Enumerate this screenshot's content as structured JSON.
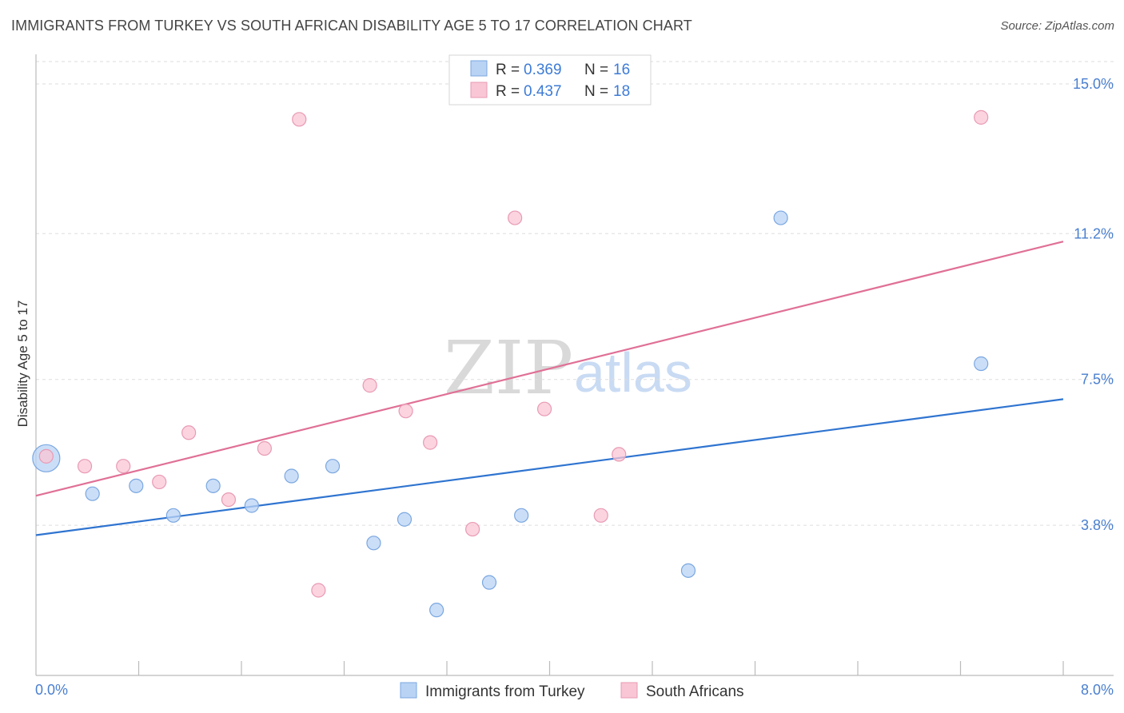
{
  "title": "IMMIGRANTS FROM TURKEY VS SOUTH AFRICAN DISABILITY AGE 5 TO 17 CORRELATION CHART",
  "source": "Source: ZipAtlas.com",
  "watermark": {
    "zip": "ZIP",
    "atlas": "atlas"
  },
  "legend": {
    "rows": [
      {
        "r_label": "R =",
        "r_value": "0.369",
        "n_label": "N =",
        "n_value": "16"
      },
      {
        "r_label": "R =",
        "r_value": "0.437",
        "n_label": "N =",
        "n_value": "18"
      }
    ]
  },
  "colors": {
    "blue_fill": "#b9d3f5",
    "blue_stroke": "#7aa7e0",
    "blue_line": "#2f74d0",
    "pink_fill": "#f9c6d5",
    "pink_stroke": "#e99ab3",
    "pink_line": "#e07096",
    "tick_text": "#4a7fcf",
    "grid": "#dddddd"
  },
  "chart_data": {
    "type": "scatter",
    "title": "IMMIGRANTS FROM TURKEY VS SOUTH AFRICAN DISABILITY AGE 5 TO 17 CORRELATION CHART",
    "xlabel": "",
    "ylabel": "Disability Age 5 to 17",
    "xlim": [
      0.0,
      8.0
    ],
    "ylim": [
      0.0,
      15.5
    ],
    "x_tick_labels": [
      "0.0%",
      "8.0%"
    ],
    "y_ticks": [
      3.8,
      7.5,
      11.2,
      15.0
    ],
    "y_tick_labels": [
      "3.8%",
      "7.5%",
      "11.2%",
      "15.0%"
    ],
    "grid": true,
    "legend_position": "top-center",
    "series": [
      {
        "name": "Immigrants from Turkey",
        "color": "blue",
        "points": [
          {
            "x": 0.08,
            "y": 5.5,
            "big": true
          },
          {
            "x": 0.44,
            "y": 4.6
          },
          {
            "x": 0.78,
            "y": 4.8
          },
          {
            "x": 1.07,
            "y": 4.05
          },
          {
            "x": 1.38,
            "y": 4.8
          },
          {
            "x": 1.68,
            "y": 4.3
          },
          {
            "x": 1.99,
            "y": 5.05
          },
          {
            "x": 2.31,
            "y": 5.3
          },
          {
            "x": 2.63,
            "y": 3.35
          },
          {
            "x": 2.87,
            "y": 3.95
          },
          {
            "x": 3.12,
            "y": 1.65
          },
          {
            "x": 3.53,
            "y": 2.35
          },
          {
            "x": 3.78,
            "y": 4.05
          },
          {
            "x": 5.08,
            "y": 2.65
          },
          {
            "x": 5.8,
            "y": 11.6
          },
          {
            "x": 7.36,
            "y": 7.9
          }
        ],
        "trend": {
          "x0": 0.0,
          "y0": 3.55,
          "x1": 8.0,
          "y1": 7.0
        }
      },
      {
        "name": "South Africans",
        "color": "pink",
        "points": [
          {
            "x": 0.08,
            "y": 5.55
          },
          {
            "x": 0.38,
            "y": 5.3
          },
          {
            "x": 0.68,
            "y": 5.3
          },
          {
            "x": 0.96,
            "y": 4.9
          },
          {
            "x": 1.19,
            "y": 6.15
          },
          {
            "x": 1.5,
            "y": 4.45
          },
          {
            "x": 1.78,
            "y": 5.75
          },
          {
            "x": 2.05,
            "y": 14.1
          },
          {
            "x": 2.2,
            "y": 2.15
          },
          {
            "x": 2.6,
            "y": 7.35
          },
          {
            "x": 2.88,
            "y": 6.7
          },
          {
            "x": 3.07,
            "y": 5.9
          },
          {
            "x": 3.4,
            "y": 3.7
          },
          {
            "x": 3.73,
            "y": 11.6
          },
          {
            "x": 3.96,
            "y": 6.75
          },
          {
            "x": 4.4,
            "y": 4.05
          },
          {
            "x": 4.54,
            "y": 5.6
          },
          {
            "x": 7.36,
            "y": 14.15
          }
        ],
        "trend": {
          "x0": 0.0,
          "y0": 4.55,
          "x1": 8.0,
          "y1": 11.0
        }
      }
    ]
  }
}
